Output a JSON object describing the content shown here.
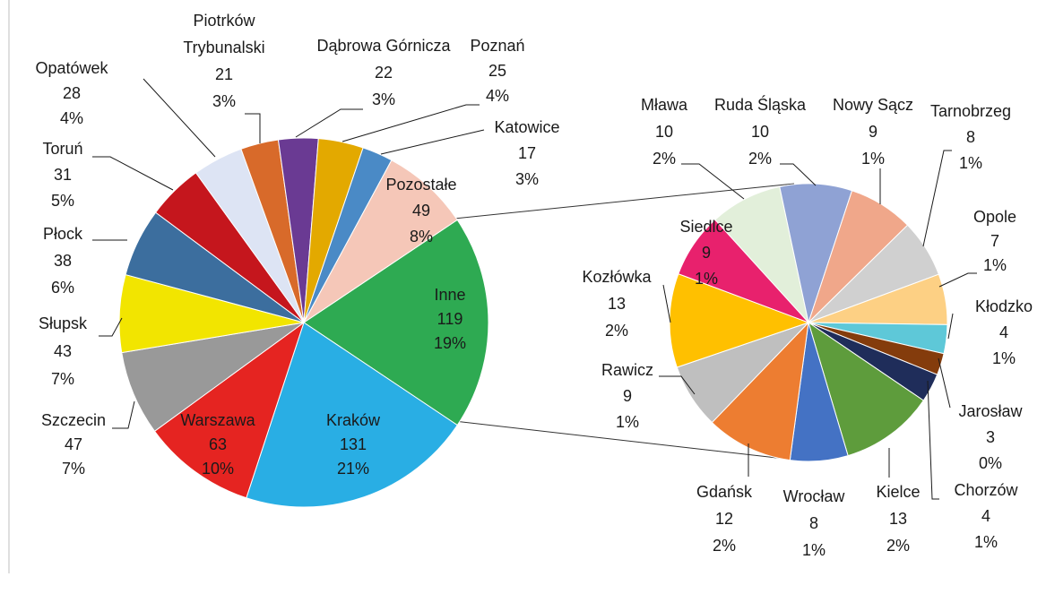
{
  "chart_data": [
    {
      "type": "pie",
      "categories": [
        "Inne",
        "Kraków",
        "Warszawa",
        "Szczecin",
        "Słupsk",
        "Płock",
        "Toruń",
        "Opatówek",
        "Piotrków Trybunalski",
        "Dąbrowa Górnicza",
        "Poznań",
        "Katowice",
        "Pozostałe"
      ],
      "values": [
        119,
        131,
        63,
        47,
        43,
        38,
        31,
        28,
        21,
        22,
        25,
        17,
        49
      ],
      "percent_labels": [
        "19%",
        "21%",
        "10%",
        "7%",
        "7%",
        "6%",
        "5%",
        "4%",
        "3%",
        "3%",
        "4%",
        "3%",
        "8%"
      ],
      "colors": [
        "#2eaa52",
        "#29aee4",
        "#e52421",
        "#999999",
        "#f2e500",
        "#3c6e9e",
        "#c5161d",
        "#dde4f4",
        "#d86a2a",
        "#6a3a93",
        "#e3a900",
        "#4a8ac6",
        "#f5c7b8"
      ]
    },
    {
      "type": "pie",
      "categories": [
        "Mława",
        "Ruda Śląska",
        "Nowy Sącz",
        "Tarnobrzeg",
        "Opole",
        "Kłodzko",
        "Jarosław",
        "Chorzów",
        "Kielce",
        "Wrocław",
        "Gdańsk",
        "Rawicz",
        "Kozłówka",
        "Siedlce"
      ],
      "values": [
        10,
        10,
        9,
        8,
        7,
        4,
        3,
        4,
        13,
        8,
        12,
        9,
        13,
        9
      ],
      "percent_labels": [
        "2%",
        "2%",
        "1%",
        "1%",
        "1%",
        "1%",
        "0%",
        "1%",
        "2%",
        "1%",
        "2%",
        "1%",
        "2%",
        "1%"
      ],
      "colors": [
        "#e2efda",
        "#8fa2d4",
        "#f0a78a",
        "#d0d0d0",
        "#fdd084",
        "#5ec8d8",
        "#843c0c",
        "#1f2d5a",
        "#5e9c3c",
        "#4472c4",
        "#ed7d31",
        "#bfbfbf",
        "#ffc000",
        "#e8216d"
      ]
    }
  ]
}
